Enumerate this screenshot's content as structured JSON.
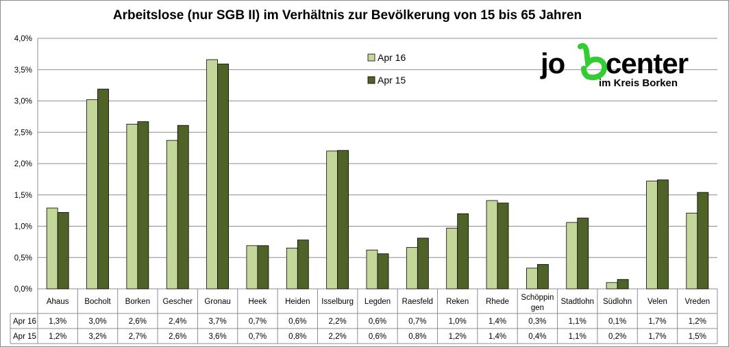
{
  "chart_data": {
    "type": "bar",
    "title": "Arbeitslose (nur SGB II) im Verhältnis zur Bevölkerung von 15 bis 65 Jahren",
    "categories": [
      "Ahaus",
      "Bocholt",
      "Borken",
      "Gescher",
      "Gronau",
      "Heek",
      "Heiden",
      "Isselburg",
      "Legden",
      "Raesfeld",
      "Reken",
      "Rhede",
      "Schöppin gen",
      "Stadtlohn",
      "Südlohn",
      "Velen",
      "Vreden"
    ],
    "series": [
      {
        "name": "Apr 16",
        "color": "#c4d79b",
        "values": [
          1.29,
          3.02,
          2.63,
          2.37,
          3.66,
          0.69,
          0.65,
          2.2,
          0.62,
          0.66,
          0.97,
          1.41,
          0.33,
          1.06,
          0.1,
          1.72,
          1.21
        ],
        "labels": [
          "1,3%",
          "3,0%",
          "2,6%",
          "2,4%",
          "3,7%",
          "0,7%",
          "0,6%",
          "2,2%",
          "0,6%",
          "0,7%",
          "1,0%",
          "1,4%",
          "0,3%",
          "1,1%",
          "0,1%",
          "1,7%",
          "1,2%"
        ]
      },
      {
        "name": "Apr 15",
        "color": "#4f6228",
        "values": [
          1.22,
          3.19,
          2.67,
          2.61,
          3.59,
          0.69,
          0.78,
          2.21,
          0.56,
          0.81,
          1.2,
          1.37,
          0.39,
          1.13,
          0.15,
          1.74,
          1.54
        ],
        "labels": [
          "1,2%",
          "3,2%",
          "2,7%",
          "2,6%",
          "3,6%",
          "0,7%",
          "0,8%",
          "2,2%",
          "0,6%",
          "0,8%",
          "1,2%",
          "1,4%",
          "0,4%",
          "1,1%",
          "0,2%",
          "1,7%",
          "1,5%"
        ]
      }
    ],
    "ylim": [
      0,
      4.0
    ],
    "yticks": [
      "0,0%",
      "0,5%",
      "1,0%",
      "1,5%",
      "2,0%",
      "2,5%",
      "3,0%",
      "3,5%",
      "4,0%"
    ],
    "grid": true,
    "legend_position": "top-center",
    "data_table": true
  },
  "logo": {
    "main": "jobcenter",
    "sub": "im Kreis Borken",
    "accent": "#33cc33"
  }
}
